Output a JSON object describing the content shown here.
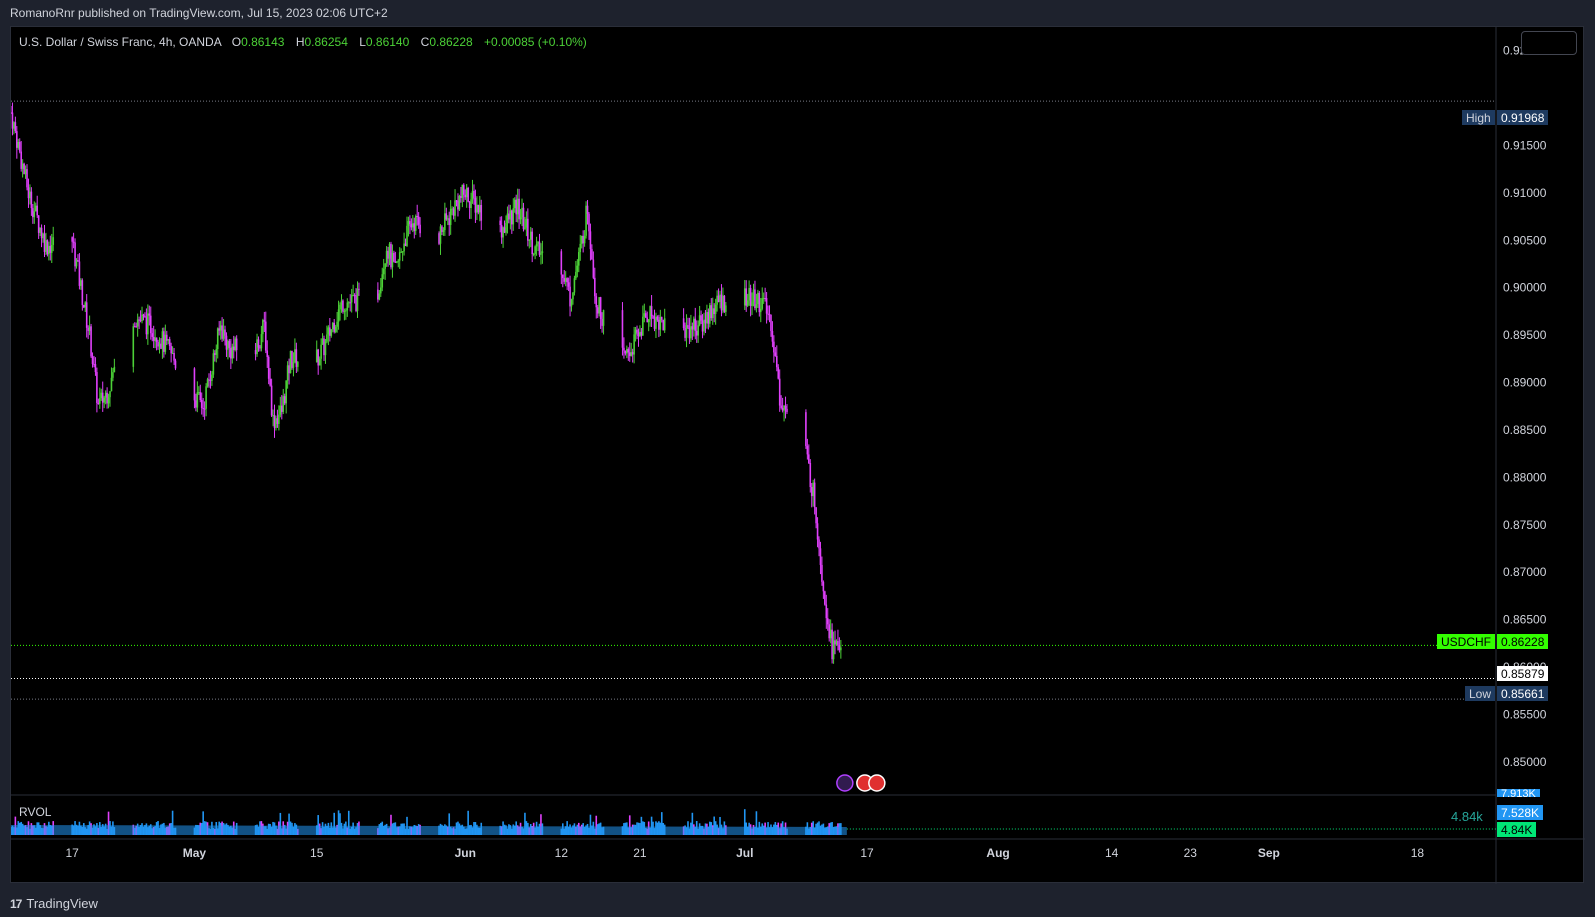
{
  "header": {
    "publish_text": "RomanoRnr published on TradingView.com, Jul 15, 2023 02:06 UTC+2"
  },
  "legend": {
    "symbol": "U.S. Dollar / Swiss Franc, 4h, OANDA",
    "open_label": "O",
    "open": "0.86143",
    "high_label": "H",
    "high": "0.86254",
    "low_label": "L",
    "low": "0.86140",
    "close_label": "C",
    "close": "0.86228",
    "change": "+0.00085 (+0.10%)"
  },
  "markers": {
    "high_label": "High",
    "high_value": "0.91968",
    "symbol_label": "USDCHF",
    "current_value": "0.86228",
    "mid_value": "0.85879",
    "low_label": "Low",
    "low_value": "0.85661"
  },
  "volume": {
    "label": "RVOL",
    "current_text": "4.84k",
    "scale_top": "7.913K",
    "scale_mid": "7.528K",
    "scale_current": "4.84K"
  },
  "footer": {
    "brand": "TradingView",
    "logo_text": "17"
  },
  "colors": {
    "up": "#4cd137",
    "down": "#e040fb",
    "volume": "#2196f3",
    "grid_label": "#d1d4dc",
    "label_box": "#1e3a5f",
    "current": "#33ff00"
  },
  "chart_data": {
    "type": "candlestick",
    "symbol": "USDCHF",
    "timeframe": "4h",
    "y_ticks": [
      "0.92500",
      "0.91500",
      "0.91000",
      "0.90500",
      "0.90000",
      "0.89500",
      "0.89000",
      "0.88500",
      "0.88000",
      "0.87500",
      "0.87000",
      "0.86500",
      "0.86000",
      "0.85500",
      "0.85000"
    ],
    "ylim": [
      0.8465,
      0.9275
    ],
    "x_ticks": [
      "17",
      "May",
      "15",
      "Jun",
      "12",
      "21",
      "Jul",
      "17",
      "Aug",
      "14",
      "23",
      "Sep",
      "18"
    ],
    "x_tick_dates": [
      "2023-04-17",
      "2023-05-01",
      "2023-05-15",
      "2023-06-01",
      "2023-06-12",
      "2023-06-21",
      "2023-07-03",
      "2023-07-17",
      "2023-08-01",
      "2023-08-14",
      "2023-08-23",
      "2023-09-01",
      "2023-09-18"
    ],
    "xlim": [
      "2023-04-10",
      "2023-09-27"
    ],
    "approx_closes": [
      [
        "2023-04-10",
        0.9185
      ],
      [
        "2023-04-12",
        0.91
      ],
      [
        "2023-04-14",
        0.9045
      ],
      [
        "2023-04-17",
        0.905
      ],
      [
        "2023-04-19",
        0.895
      ],
      [
        "2023-04-20",
        0.8875
      ],
      [
        "2023-04-21",
        0.889
      ],
      [
        "2023-04-24",
        0.897
      ],
      [
        "2023-04-26",
        0.896
      ],
      [
        "2023-04-28",
        0.8935
      ],
      [
        "2023-05-01",
        0.8885
      ],
      [
        "2023-05-02",
        0.8875
      ],
      [
        "2023-05-04",
        0.896
      ],
      [
        "2023-05-05",
        0.8935
      ],
      [
        "2023-05-08",
        0.8935
      ],
      [
        "2023-05-09",
        0.896
      ],
      [
        "2023-05-10",
        0.886
      ],
      [
        "2023-05-11",
        0.887
      ],
      [
        "2023-05-12",
        0.8925
      ],
      [
        "2023-05-15",
        0.8925
      ],
      [
        "2023-05-16",
        0.894
      ],
      [
        "2023-05-17",
        0.8965
      ],
      [
        "2023-05-18",
        0.8985
      ],
      [
        "2023-05-19",
        0.8985
      ],
      [
        "2023-05-22",
        0.8995
      ],
      [
        "2023-05-23",
        0.9045
      ],
      [
        "2023-05-24",
        0.9015
      ],
      [
        "2023-05-25",
        0.905
      ],
      [
        "2023-05-26",
        0.907
      ],
      [
        "2023-05-29",
        0.9055
      ],
      [
        "2023-05-31",
        0.909
      ],
      [
        "2023-06-01",
        0.91
      ],
      [
        "2023-06-02",
        0.909
      ],
      [
        "2023-06-05",
        0.906
      ],
      [
        "2023-06-07",
        0.9085
      ],
      [
        "2023-06-09",
        0.904
      ],
      [
        "2023-06-12",
        0.9025
      ],
      [
        "2023-06-13",
        0.899
      ],
      [
        "2023-06-14",
        0.903
      ],
      [
        "2023-06-15",
        0.9085
      ],
      [
        "2023-06-16",
        0.8985
      ],
      [
        "2023-06-19",
        0.8925
      ],
      [
        "2023-06-20",
        0.8935
      ],
      [
        "2023-06-21",
        0.8955
      ],
      [
        "2023-06-22",
        0.8975
      ],
      [
        "2023-06-23",
        0.8965
      ],
      [
        "2023-06-26",
        0.8955
      ],
      [
        "2023-06-27",
        0.896
      ],
      [
        "2023-06-28",
        0.896
      ],
      [
        "2023-06-29",
        0.8975
      ],
      [
        "2023-06-30",
        0.8985
      ],
      [
        "2023-07-03",
        0.899
      ],
      [
        "2023-07-05",
        0.8985
      ],
      [
        "2023-07-06",
        0.8965
      ],
      [
        "2023-07-07",
        0.8885
      ],
      [
        "2023-07-10",
        0.8825
      ],
      [
        "2023-07-11",
        0.8775
      ],
      [
        "2023-07-12",
        0.8685
      ],
      [
        "2023-07-13",
        0.862
      ],
      [
        "2023-07-14",
        0.8623
      ]
    ],
    "current_price": 0.86228,
    "period_high": 0.91968,
    "period_low": 0.85661,
    "marked_level": 0.85879
  }
}
